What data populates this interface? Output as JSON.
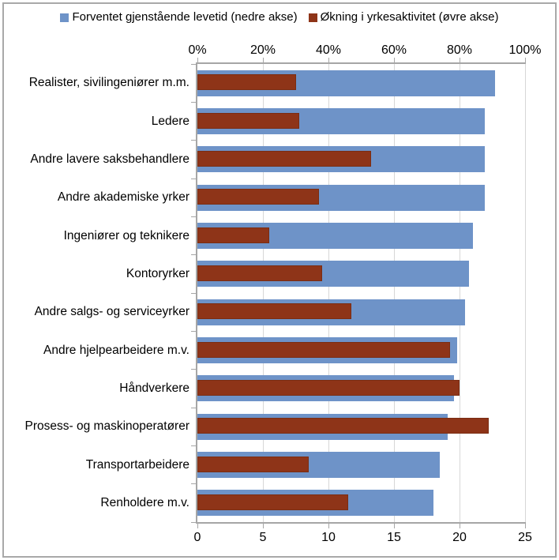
{
  "legend": [
    {
      "label": "Forventet gjenstående levetid (nedre akse)",
      "color": "#6e93c8"
    },
    {
      "label": "Økning i yrkesaktivitet (øvre akse)",
      "color": "#8e3418"
    }
  ],
  "chart_data": {
    "type": "bar",
    "orientation": "horizontal",
    "grid": "vertical-only",
    "legend_position": "top-center",
    "categories": [
      "Realister, sivilingeniører m.m.",
      "Ledere",
      "Andre lavere saksbehandlere",
      "Andre akademiske yrker",
      "Ingeniører og teknikere",
      "Kontoryrker",
      "Andre salgs- og serviceyrker",
      "Andre hjelpearbeidere m.v.",
      "Håndverkere",
      "Prosess- og maskinoperatører",
      "Transportarbeidere",
      "Renholdere m.v."
    ],
    "series": [
      {
        "name": "Forventet gjenstående levetid (nedre akse)",
        "axis": "bottom",
        "color": "#6e93c8",
        "values": [
          22.7,
          21.9,
          21.9,
          21.9,
          21.0,
          20.7,
          20.4,
          19.8,
          19.6,
          19.1,
          18.5,
          18.0
        ]
      },
      {
        "name": "Økning i yrkesaktivitet (øvre akse)",
        "axis": "top",
        "color": "#8e3418",
        "values": [
          30,
          31,
          53,
          37,
          22,
          38,
          47,
          77,
          80,
          89,
          34,
          46
        ]
      }
    ],
    "top_axis": {
      "tick_labels": [
        "0%",
        "20%",
        "40%",
        "60%",
        "80%",
        "100%"
      ],
      "min": 0,
      "max": 100
    },
    "bottom_axis": {
      "tick_labels": [
        "0",
        "5",
        "10",
        "15",
        "20",
        "25"
      ],
      "min": 0,
      "max": 25
    }
  }
}
